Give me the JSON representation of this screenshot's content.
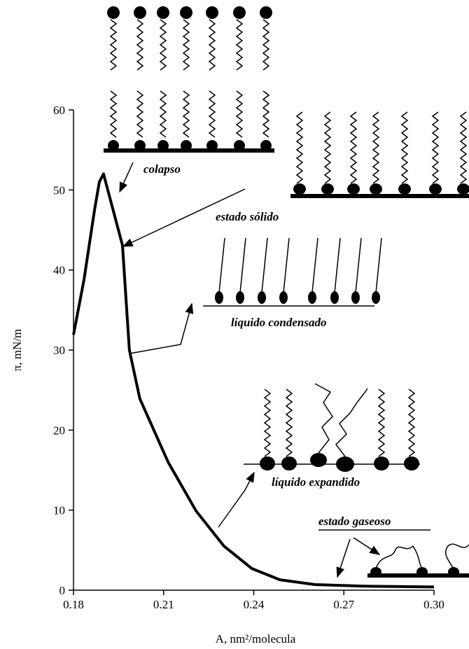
{
  "chart_data": {
    "type": "line",
    "x_label": "A, nm²/molecula",
    "y_label": "π, mN/m",
    "x": [
      0.18,
      0.1835,
      0.187,
      0.1886,
      0.19,
      0.1963,
      0.1986,
      0.2021,
      0.2115,
      0.2208,
      0.2301,
      0.2394,
      0.2487,
      0.2604,
      0.2767,
      0.3
    ],
    "values": [
      31.9,
      38.8,
      47.5,
      51,
      52,
      43.1,
      30,
      23.9,
      16,
      9.9,
      5.5,
      2.7,
      1.3,
      0.7,
      0.5,
      0.4
    ],
    "color": "#000000",
    "xlim": [
      0.18,
      0.3
    ],
    "xticks": [
      0.18,
      0.21,
      0.24,
      0.27,
      {
        "value": 0.3,
        "label": "0.30"
      }
    ],
    "ylim": [
      0,
      60
    ],
    "yticks": [
      0,
      10,
      20,
      30,
      40,
      50,
      60
    ],
    "annotations": [
      "colapso",
      "estado sólido",
      "líquido condensado",
      "líquido expandido",
      "estado gaseoso"
    ]
  }
}
